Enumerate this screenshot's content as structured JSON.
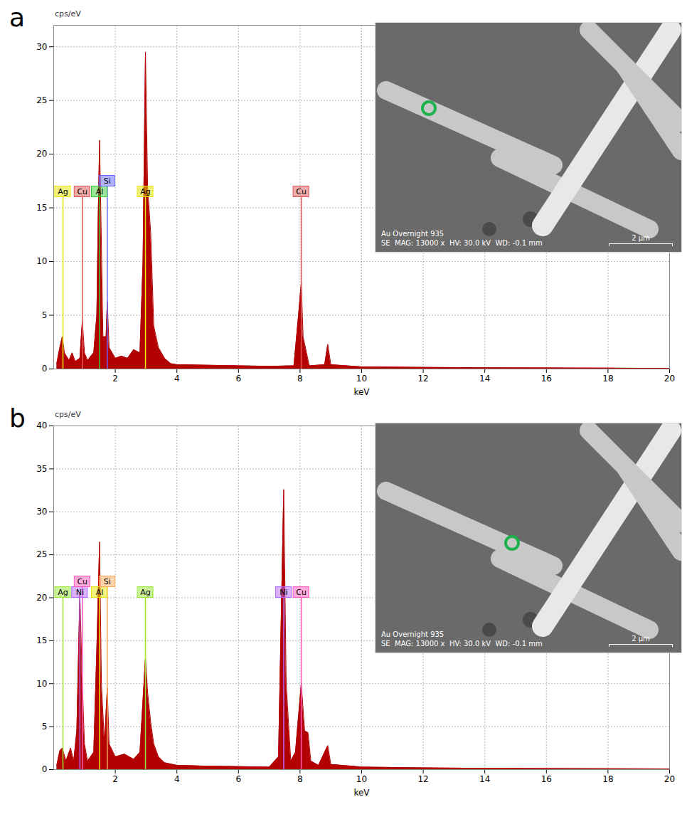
{
  "chart_data": [
    {
      "type": "line",
      "label": "a",
      "y_label": "cps/eV",
      "x_label": "keV",
      "color": "#b30000",
      "grid": true,
      "xlim": [
        0,
        20
      ],
      "xticks": [
        2,
        4,
        6,
        8,
        10,
        12,
        14,
        16,
        18,
        20
      ],
      "ylim": [
        0,
        32
      ],
      "yticks": [
        0,
        5,
        10,
        15,
        20,
        25,
        30
      ],
      "x": [
        0.1,
        0.2,
        0.28,
        0.35,
        0.5,
        0.6,
        0.7,
        0.85,
        0.93,
        1.0,
        1.1,
        1.3,
        1.4,
        1.45,
        1.49,
        1.53,
        1.6,
        1.7,
        1.74,
        1.8,
        2.0,
        2.2,
        2.4,
        2.6,
        2.8,
        2.9,
        2.98,
        3.05,
        3.15,
        3.25,
        3.4,
        3.6,
        3.8,
        4.0,
        5.0,
        6.0,
        7.0,
        7.8,
        7.95,
        8.04,
        8.1,
        8.3,
        8.8,
        8.9,
        9.0,
        10.0,
        12.0,
        14.0,
        16.0,
        18.0,
        20.0
      ],
      "values": [
        0.5,
        2,
        3,
        1.5,
        0.8,
        1.5,
        0.7,
        1,
        4.5,
        1.5,
        0.8,
        1.5,
        5,
        15,
        21.3,
        15,
        3,
        3,
        6.3,
        2,
        1,
        1.2,
        1,
        1.8,
        1.5,
        10,
        29.5,
        17,
        12.7,
        4,
        2,
        1,
        0.5,
        0.4,
        0.35,
        0.3,
        0.25,
        0.3,
        5,
        8,
        3,
        0.3,
        0.4,
        2.3,
        0.4,
        0.2,
        0.15,
        0.12,
        0.1,
        0.08,
        0.05
      ],
      "element_markers": [
        {
          "name": "Ag",
          "energy": 0.3,
          "color": "#e6e600"
        },
        {
          "name": "Cu",
          "energy": 0.93,
          "color": "#e05555"
        },
        {
          "name": "Al",
          "energy": 1.49,
          "color": "#33cc33"
        },
        {
          "name": "Si",
          "energy": 1.74,
          "color": "#6666ff"
        },
        {
          "name": "Ag",
          "energy": 2.98,
          "color": "#e6e600"
        },
        {
          "name": "Cu",
          "energy": 8.04,
          "color": "#e05555"
        }
      ],
      "inset": {
        "label": "Au Overnight 935",
        "info": "SE  MAG: 13000 x  HV: 30.0 kV  WD: -0.1 mm",
        "scale_bar": "2 µm"
      }
    },
    {
      "type": "line",
      "label": "b",
      "y_label": "cps/eV",
      "x_label": "keV",
      "color": "#b30000",
      "grid": true,
      "xlim": [
        0,
        20
      ],
      "xticks": [
        2,
        4,
        6,
        8,
        10,
        12,
        14,
        16,
        18,
        20
      ],
      "ylim": [
        0,
        40
      ],
      "yticks": [
        0,
        5,
        10,
        15,
        20,
        25,
        30,
        35,
        40
      ],
      "x": [
        0.1,
        0.2,
        0.28,
        0.4,
        0.55,
        0.65,
        0.75,
        0.85,
        0.93,
        1.0,
        1.1,
        1.3,
        1.4,
        1.49,
        1.55,
        1.65,
        1.74,
        1.8,
        2.0,
        2.3,
        2.6,
        2.8,
        2.98,
        3.05,
        3.15,
        3.25,
        3.4,
        3.6,
        4.0,
        5.0,
        6.0,
        7.0,
        7.3,
        7.47,
        7.55,
        7.7,
        7.85,
        8.04,
        8.15,
        8.26,
        8.35,
        8.6,
        8.9,
        9.0,
        9.7,
        10.0,
        12.0,
        14.0,
        16.0,
        18.0,
        20.0
      ],
      "values": [
        0.5,
        2.2,
        2.5,
        1,
        2.5,
        1,
        4.5,
        20.5,
        10,
        3,
        1,
        2,
        14,
        26.5,
        10,
        3,
        9.5,
        3,
        1.5,
        1.8,
        1.2,
        2,
        13,
        9,
        5.5,
        3,
        1.5,
        0.8,
        0.5,
        0.4,
        0.35,
        0.3,
        1.5,
        32.6,
        10,
        1,
        2,
        10,
        4.5,
        4.3,
        1,
        0.5,
        2.8,
        0.6,
        0.4,
        0.3,
        0.2,
        0.15,
        0.12,
        0.1,
        0.08
      ],
      "element_markers": [
        {
          "name": "Ag",
          "energy": 0.3,
          "color": "#99e633"
        },
        {
          "name": "Ni",
          "energy": 0.85,
          "color": "#b366ff"
        },
        {
          "name": "Cu",
          "energy": 0.93,
          "color": "#ff55bb"
        },
        {
          "name": "Al",
          "energy": 1.49,
          "color": "#e6e600"
        },
        {
          "name": "Si",
          "energy": 1.74,
          "color": "#ffaa55"
        },
        {
          "name": "Ag",
          "energy": 2.98,
          "color": "#99e633"
        },
        {
          "name": "Ni",
          "energy": 7.47,
          "color": "#b366ff"
        },
        {
          "name": "Cu",
          "energy": 8.04,
          "color": "#ff55bb"
        }
      ],
      "inset": {
        "label": "Au Overnight 935",
        "info": "SE  MAG: 13000 x  HV: 30.0 kV  WD: -0.1 mm",
        "scale_bar": "2 µm"
      }
    }
  ]
}
